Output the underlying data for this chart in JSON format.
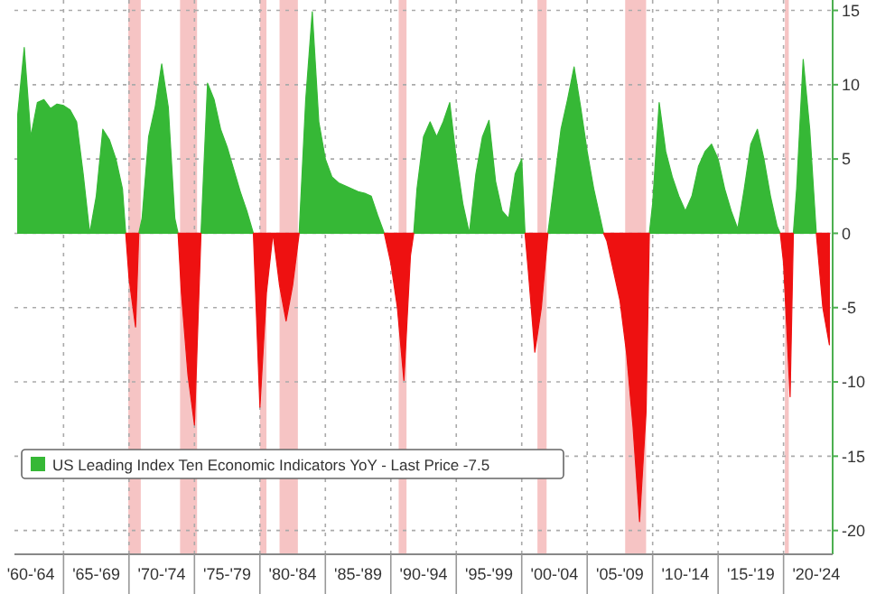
{
  "chart_data": {
    "type": "area",
    "categories": [
      null,
      null,
      "'60-'64",
      null,
      null,
      null,
      null,
      null,
      null,
      null,
      null,
      null,
      "'65-'69",
      null,
      null,
      null,
      null,
      null,
      null,
      null,
      null,
      null,
      "'70-'74",
      null,
      null,
      null,
      null,
      null,
      null,
      null,
      null,
      null,
      "'75-'79",
      null,
      null,
      null,
      null,
      null,
      null,
      null,
      null,
      null,
      "'80-'84",
      null,
      null,
      null,
      null,
      null,
      null,
      null,
      null,
      null,
      "'85-'89",
      null,
      null,
      null,
      null,
      null,
      null,
      null,
      null,
      null,
      "'90-'94",
      null,
      null,
      null,
      null,
      null,
      null,
      null,
      null,
      null,
      "'95-'99",
      null,
      null,
      null,
      null,
      null,
      null,
      null,
      null,
      null,
      "'00-'04",
      null,
      null,
      null,
      null,
      null,
      null,
      null,
      null,
      null,
      "'05-'09",
      null,
      null,
      null,
      null,
      null,
      null,
      null,
      null,
      null,
      "'10-'14",
      null,
      null,
      null,
      null,
      null,
      null,
      null,
      null,
      null,
      "'15-'19",
      null,
      null,
      null,
      null,
      null,
      null,
      null,
      null,
      null,
      "'20-'24",
      null,
      null
    ],
    "series": [
      {
        "name": "US Leading Index Ten Economic Indicators YoY - Last Price -7.5",
        "color": "#36b836",
        "values": [
          8,
          12.5,
          6.5,
          8.8,
          9,
          8.4,
          8.7,
          8.6,
          8.3,
          7.5,
          4,
          0,
          2.5,
          7,
          6.3,
          5,
          3,
          null,
          null,
          1,
          6.5,
          8.5,
          11.4,
          8.5,
          1,
          null,
          null,
          null,
          0,
          10.1,
          9,
          7,
          5.8,
          4.3,
          2.8,
          1.5,
          0,
          null,
          null,
          null,
          null,
          null,
          null,
          0,
          9,
          14.9,
          7.5,
          5,
          3.8,
          3.4,
          3.2,
          3,
          2.8,
          2.7,
          2.5,
          1.2,
          0,
          null,
          null,
          null,
          null,
          3,
          6.5,
          7.5,
          6.5,
          7.5,
          8.8,
          5,
          2,
          0,
          4,
          6.5,
          7.6,
          3.5,
          1.5,
          1,
          4,
          5,
          null,
          null,
          null,
          0,
          3.5,
          7,
          9,
          11.2,
          8.5,
          5.5,
          3,
          1,
          null,
          null,
          null,
          null,
          null,
          null,
          null,
          2,
          8.8,
          5.5,
          3.8,
          2.5,
          1.5,
          2.5,
          4.5,
          5.5,
          6,
          5,
          3,
          1.5,
          0.3,
          3,
          6,
          7,
          5,
          2.5,
          0.5,
          null,
          null,
          3,
          11.7,
          7,
          0,
          null,
          null
        ]
      },
      {
        "color": "#ee1111",
        "values": [
          null,
          null,
          null,
          null,
          null,
          null,
          null,
          null,
          null,
          null,
          null,
          null,
          null,
          null,
          null,
          null,
          null,
          -3,
          -6.3,
          null,
          null,
          null,
          null,
          null,
          null,
          -4,
          -9.5,
          -12.9,
          0,
          null,
          null,
          null,
          null,
          null,
          null,
          null,
          0,
          -11.7,
          -4,
          0,
          -3.5,
          -5.9,
          -3.5,
          0,
          null,
          null,
          null,
          null,
          null,
          null,
          null,
          null,
          null,
          null,
          null,
          null,
          0,
          -2,
          -5,
          -9.9,
          -1.5,
          null,
          null,
          null,
          null,
          null,
          null,
          null,
          null,
          null,
          null,
          null,
          null,
          null,
          null,
          null,
          null,
          null,
          -2.5,
          -8,
          -5,
          0,
          null,
          null,
          null,
          null,
          null,
          null,
          null,
          null,
          -0.5,
          -2.5,
          -4.5,
          -8,
          -13,
          -19.4,
          -12,
          null,
          null,
          null,
          null,
          null,
          null,
          null,
          null,
          null,
          null,
          null,
          null,
          null,
          null,
          null,
          null,
          null,
          null,
          null,
          null,
          -2,
          -11,
          null,
          null,
          null,
          0,
          -5,
          -7.5
        ]
      }
    ],
    "ylim": [
      -21.6,
      15.7
    ],
    "yticks": [
      -20,
      -15,
      -10,
      -5,
      0,
      5,
      10,
      15
    ],
    "grid": true,
    "legend": "bottom left"
  }
}
